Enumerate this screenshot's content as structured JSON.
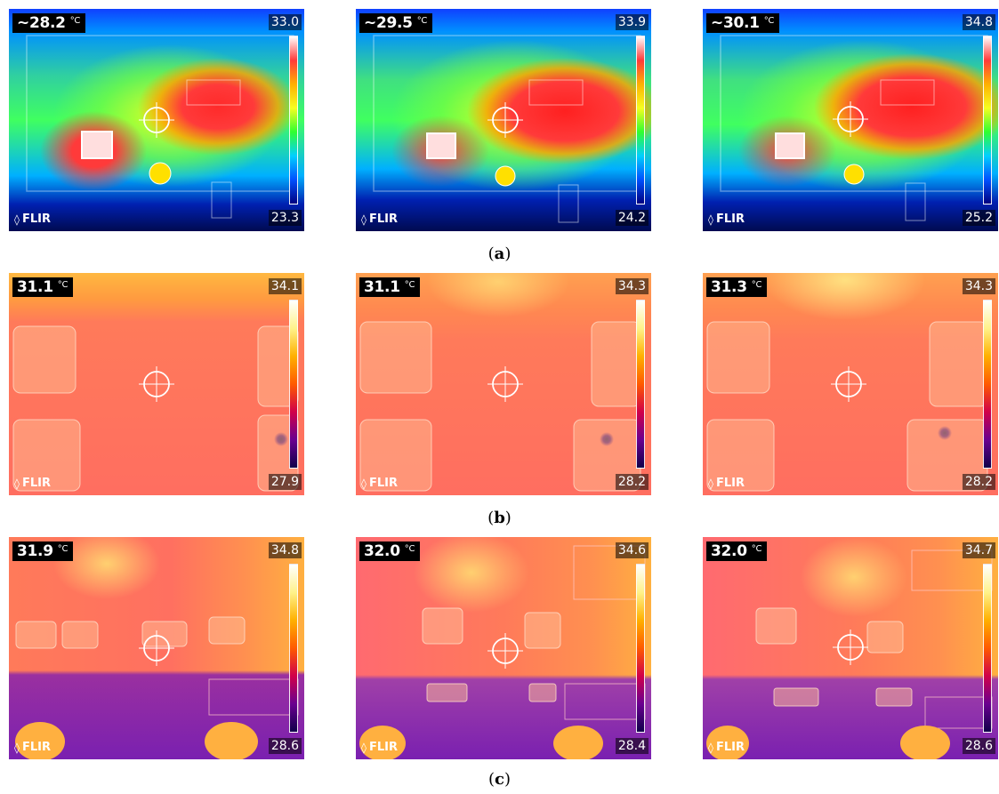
{
  "colors": {
    "iron_scale": [
      "#ffffff",
      "#fff28a",
      "#ffb000",
      "#ff5a00",
      "#d0004a",
      "#6a0090",
      "#10004a"
    ],
    "rainbow_scale": [
      "#ffffff",
      "#ff3a3a",
      "#ffb000",
      "#f5ff20",
      "#30ff30",
      "#00d0ff",
      "#0050ff",
      "#000080"
    ]
  },
  "rows": [
    {
      "caption_letter": "a",
      "palette": "rainbow",
      "panels": [
        {
          "spot": "~28.2",
          "unit": "°C",
          "max": "33.0",
          "min": "23.3",
          "logo": "FLIR"
        },
        {
          "spot": "~29.5",
          "unit": "°C",
          "max": "33.9",
          "min": "24.2",
          "logo": "FLIR"
        },
        {
          "spot": "~30.1",
          "unit": "°C",
          "max": "34.8",
          "min": "25.2",
          "logo": "FLIR"
        }
      ]
    },
    {
      "caption_letter": "b",
      "palette": "iron",
      "panels": [
        {
          "spot": "31.1",
          "unit": "°C",
          "max": "34.1",
          "min": "27.9",
          "logo": "FLIR"
        },
        {
          "spot": "31.1",
          "unit": "°C",
          "max": "34.3",
          "min": "28.2",
          "logo": "FLIR"
        },
        {
          "spot": "31.3",
          "unit": "°C",
          "max": "34.3",
          "min": "28.2",
          "logo": "FLIR"
        }
      ]
    },
    {
      "caption_letter": "c",
      "palette": "iron",
      "panels": [
        {
          "spot": "31.9",
          "unit": "°C",
          "max": "34.8",
          "min": "28.6",
          "logo": "FLIR"
        },
        {
          "spot": "32.0",
          "unit": "°C",
          "max": "34.6",
          "min": "28.4",
          "logo": "FLIR"
        },
        {
          "spot": "32.0",
          "unit": "°C",
          "max": "34.7",
          "min": "28.6",
          "logo": "FLIR"
        }
      ]
    }
  ]
}
